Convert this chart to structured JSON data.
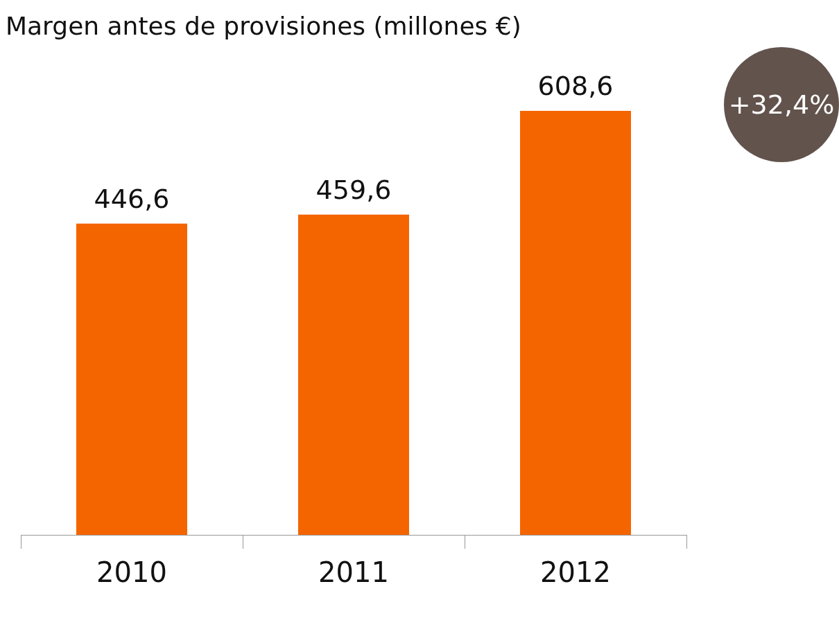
{
  "chart_data": {
    "type": "bar",
    "title": "Margen antes de provisiones (millones €)",
    "categories": [
      "2010",
      "2011",
      "2012"
    ],
    "values": [
      446.6,
      459.6,
      608.6
    ],
    "value_labels": [
      "446,6",
      "459,6",
      "608,6"
    ],
    "color": "#f46500",
    "annotations": [
      "+32,4%"
    ]
  }
}
